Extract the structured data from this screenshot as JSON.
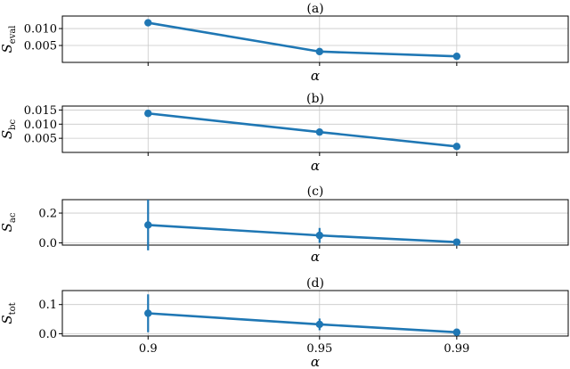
{
  "chart_data": [
    {
      "type": "line",
      "title": "(a)",
      "xlabel": "α",
      "ylabel": "S",
      "ylabel_sub": "eval",
      "x": [
        0.9,
        0.95,
        0.99
      ],
      "x_tick_labels": [
        "0.9",
        "0.95",
        "0.99"
      ],
      "show_x_tick_labels": false,
      "yticks": [
        0.005,
        0.01
      ],
      "ytick_labels": [
        "0.005",
        "0.010"
      ],
      "ylim": [
        0.0,
        0.0137
      ],
      "grid": true,
      "color": "#1f77b4",
      "series": [
        {
          "values": [
            0.0117,
            0.0032,
            0.0018
          ],
          "errors": [
            0.0008,
            0.0002,
            0.0002
          ]
        }
      ]
    },
    {
      "type": "line",
      "title": "(b)",
      "xlabel": "α",
      "ylabel": "S",
      "ylabel_sub": "bc",
      "x": [
        0.9,
        0.95,
        0.99
      ],
      "x_tick_labels": [
        "0.9",
        "0.95",
        "0.99"
      ],
      "show_x_tick_labels": false,
      "yticks": [
        0.005,
        0.01,
        0.015
      ],
      "ytick_labels": [
        "0.005",
        "0.010",
        "0.015"
      ],
      "ylim": [
        0.0,
        0.0164
      ],
      "grid": true,
      "color": "#1f77b4",
      "series": [
        {
          "values": [
            0.0138,
            0.0072,
            0.0021
          ],
          "errors": [
            0.0004,
            0.0002,
            0.0002
          ]
        }
      ]
    },
    {
      "type": "line",
      "title": "(c)",
      "xlabel": "α",
      "ylabel": "S",
      "ylabel_sub": "ac",
      "x": [
        0.9,
        0.95,
        0.99
      ],
      "x_tick_labels": [
        "0.9",
        "0.95",
        "0.99"
      ],
      "show_x_tick_labels": false,
      "yticks": [
        0.0,
        0.2
      ],
      "ytick_labels": [
        "0.0",
        "0.2"
      ],
      "ylim": [
        -0.015,
        0.29
      ],
      "grid": true,
      "color": "#1f77b4",
      "series": [
        {
          "values": [
            0.12,
            0.05,
            0.005
          ],
          "errors": [
            0.17,
            0.05,
            0.01
          ]
        }
      ]
    },
    {
      "type": "line",
      "title": "(d)",
      "xlabel": "α",
      "ylabel": "S",
      "ylabel_sub": "tot",
      "x": [
        0.9,
        0.95,
        0.99
      ],
      "x_tick_labels": [
        "0.9",
        "0.95",
        "0.99"
      ],
      "show_x_tick_labels": true,
      "yticks": [
        0.0,
        0.1
      ],
      "ytick_labels": [
        "0.0",
        "0.1"
      ],
      "ylim": [
        -0.008,
        0.148
      ],
      "grid": true,
      "color": "#1f77b4",
      "series": [
        {
          "values": [
            0.07,
            0.032,
            0.005
          ],
          "errors": [
            0.065,
            0.02,
            0.008
          ]
        }
      ]
    }
  ]
}
